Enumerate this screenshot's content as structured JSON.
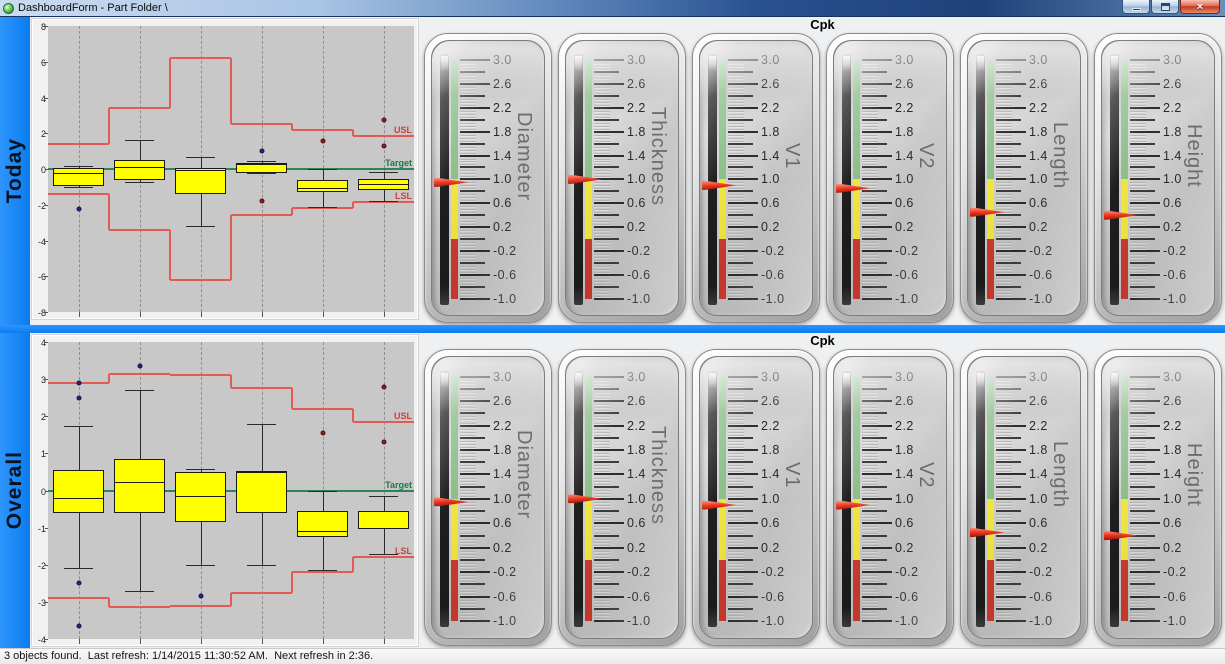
{
  "window": {
    "title": "DashboardForm - Part Folder \\"
  },
  "window_controls": {
    "minimize": "minimize",
    "maximize": "maximize",
    "close": "×"
  },
  "status_bar": {
    "text": "3 objects found.  Last refresh: 1/14/2015 11:30:52 AM.  Next refresh in 2:36."
  },
  "colors": {
    "accent_blue": "#0a7cf0",
    "box_fill": "#ffff00",
    "spec_line": "#e25b54",
    "target_line": "#2c8457",
    "spec_label": "#d43c3c",
    "target_label": "#1d7a46",
    "outlier_blue": "#26267e",
    "outlier_red": "#8c1f1f",
    "needle": "#e03522"
  },
  "gauge_scale": {
    "min": -1.0,
    "max": 3.0,
    "label_step": 0.4,
    "mid_step": 0.2,
    "minor_step": 0.05,
    "labels": [
      "3.0",
      "2.6",
      "2.2",
      "1.8",
      "1.4",
      "1.0",
      "0.6",
      "0.2",
      "-0.2",
      "-0.6",
      "-1.0"
    ],
    "zones": [
      {
        "from": 1.0,
        "to": 3.0,
        "color": "#8cc18c"
      },
      {
        "from": 0.0,
        "to": 1.0,
        "color": "#f0e73e"
      },
      {
        "from": -1.0,
        "to": 0.0,
        "color": "#cd3a30"
      }
    ]
  },
  "rows": [
    {
      "id": "today",
      "label": "Today",
      "cpk_header": "Cpk",
      "chart_data": {
        "type": "boxplot",
        "ylim": [
          -8,
          8
        ],
        "ytick_step": 2,
        "target": 0,
        "usl": [
          1.4,
          3.4,
          6.2,
          2.5,
          2.2,
          1.85
        ],
        "lsl": [
          -1.4,
          -3.4,
          -6.2,
          -2.6,
          -2.2,
          -1.85
        ],
        "labels": {
          "usl": "USL",
          "target": "Target",
          "lsl": "LSL"
        },
        "boxes": [
          {
            "whisker_low": -1.0,
            "q1": -0.95,
            "median": -0.2,
            "q3": 0.05,
            "whisker_high": 0.15,
            "outliers": [
              {
                "value": -2.25,
                "color": "#26267e"
              }
            ]
          },
          {
            "whisker_low": -0.7,
            "q1": -0.6,
            "median": 0.1,
            "q3": 0.5,
            "whisker_high": 1.6,
            "outliers": []
          },
          {
            "whisker_low": -3.2,
            "q1": -1.4,
            "median": -0.05,
            "q3": 0.05,
            "whisker_high": 0.65,
            "outliers": []
          },
          {
            "whisker_low": -0.25,
            "q1": -0.2,
            "median": 0.28,
            "q3": 0.35,
            "whisker_high": 0.45,
            "outliers": [
              {
                "value": 1.0,
                "color": "#26267e"
              },
              {
                "value": -1.8,
                "color": "#8c1f1f"
              }
            ]
          },
          {
            "whisker_low": -2.1,
            "q1": -1.3,
            "median": -1.05,
            "q3": -0.6,
            "whisker_high": 0.0,
            "outliers": [
              {
                "value": 1.55,
                "color": "#8c1f1f"
              }
            ]
          },
          {
            "whisker_low": -1.8,
            "q1": -1.2,
            "median": -0.85,
            "q3": -0.55,
            "whisker_high": -0.15,
            "outliers": [
              {
                "value": 2.75,
                "color": "#8c1f1f"
              },
              {
                "value": 1.3,
                "color": "#8c1f1f"
              }
            ]
          }
        ]
      },
      "gauges": [
        {
          "name": "Diameter",
          "value": 0.95
        },
        {
          "name": "Thickness",
          "value": 1.0
        },
        {
          "name": "V1",
          "value": 0.9
        },
        {
          "name": "V2",
          "value": 0.85
        },
        {
          "name": "Length",
          "value": 0.45
        },
        {
          "name": "Height",
          "value": 0.4
        }
      ]
    },
    {
      "id": "overall",
      "label": "Overall",
      "cpk_header": "Cpk",
      "chart_data": {
        "type": "boxplot",
        "ylim": [
          -4,
          4
        ],
        "ytick_step": 1,
        "target": 0,
        "usl": [
          2.9,
          3.15,
          3.1,
          2.75,
          2.2,
          1.85
        ],
        "lsl": [
          -2.9,
          -3.15,
          -3.1,
          -2.75,
          -2.2,
          -1.8
        ],
        "labels": {
          "usl": "USL",
          "target": "Target",
          "lsl": "LSL"
        },
        "boxes": [
          {
            "whisker_low": -2.1,
            "q1": -0.6,
            "median": -0.2,
            "q3": 0.55,
            "whisker_high": 1.75,
            "outliers": [
              {
                "value": 2.9,
                "color": "#26267e"
              },
              {
                "value": 2.5,
                "color": "#26267e"
              },
              {
                "value": -2.5,
                "color": "#26267e"
              },
              {
                "value": -3.65,
                "color": "#26267e"
              }
            ]
          },
          {
            "whisker_low": -2.7,
            "q1": -0.6,
            "median": 0.22,
            "q3": 0.85,
            "whisker_high": 2.7,
            "outliers": [
              {
                "value": 3.35,
                "color": "#26267e"
              }
            ]
          },
          {
            "whisker_low": -2.0,
            "q1": -0.85,
            "median": -0.15,
            "q3": 0.5,
            "whisker_high": 0.57,
            "outliers": [
              {
                "value": -2.85,
                "color": "#26267e"
              }
            ]
          },
          {
            "whisker_low": -2.0,
            "q1": -0.6,
            "median": 0.5,
            "q3": 0.52,
            "whisker_high": 1.8,
            "outliers": []
          },
          {
            "whisker_low": -2.15,
            "q1": -1.25,
            "median": -1.1,
            "q3": -0.55,
            "whisker_high": 0.0,
            "outliers": [
              {
                "value": 1.55,
                "color": "#8c1f1f"
              }
            ]
          },
          {
            "whisker_low": -1.7,
            "q1": -1.05,
            "median": null,
            "q3": -0.55,
            "whisker_high": -0.15,
            "outliers": [
              {
                "value": 2.8,
                "color": "#8c1f1f"
              },
              {
                "value": 1.3,
                "color": "#8c1f1f"
              }
            ]
          }
        ]
      },
      "gauges": [
        {
          "name": "Diameter",
          "value": 0.95
        },
        {
          "name": "Thickness",
          "value": 1.0
        },
        {
          "name": "V1",
          "value": 0.9
        },
        {
          "name": "V2",
          "value": 0.9
        },
        {
          "name": "Length",
          "value": 0.45
        },
        {
          "name": "Height",
          "value": 0.4
        }
      ]
    }
  ]
}
